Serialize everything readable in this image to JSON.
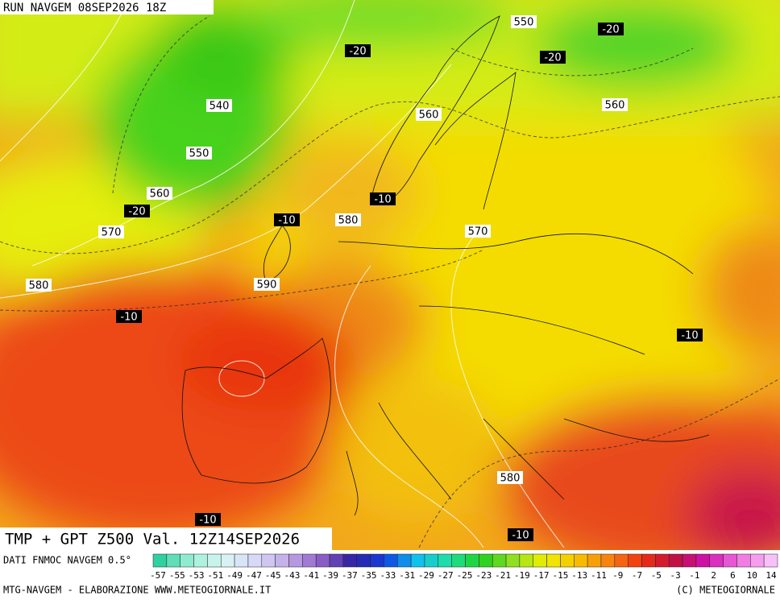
{
  "header": {
    "title": "RUN NAVGEM 08SEP2026 18Z"
  },
  "map": {
    "height_labels": [
      "550",
      "540",
      "560",
      "560",
      "550",
      "560",
      "580",
      "570",
      "570",
      "580",
      "590",
      "580"
    ],
    "temperature_labels": [
      "-20",
      "-20",
      "-20",
      "-10",
      "-20",
      "-10",
      "-10",
      "-10",
      "-10",
      "-10"
    ]
  },
  "footer": {
    "product": "TMP + GPT Z500 Val. 12Z14SEP2026",
    "source": "DATI FNMOC NAVGEM 0.5°",
    "scale": [
      -57,
      -55,
      -53,
      -51,
      -49,
      -47,
      -45,
      -43,
      -41,
      -39,
      -37,
      -35,
      -33,
      -31,
      -29,
      -27,
      -25,
      -23,
      -21,
      -19,
      -17,
      -15,
      -13,
      -11,
      -9,
      -7,
      -5,
      -3,
      -1,
      2,
      6,
      10,
      14
    ],
    "credit": "MTG-NAVGEM - ELABORAZIONE WWW.METEOGIORNALE.IT",
    "copyright": "(C) METEOGIORNALE"
  }
}
